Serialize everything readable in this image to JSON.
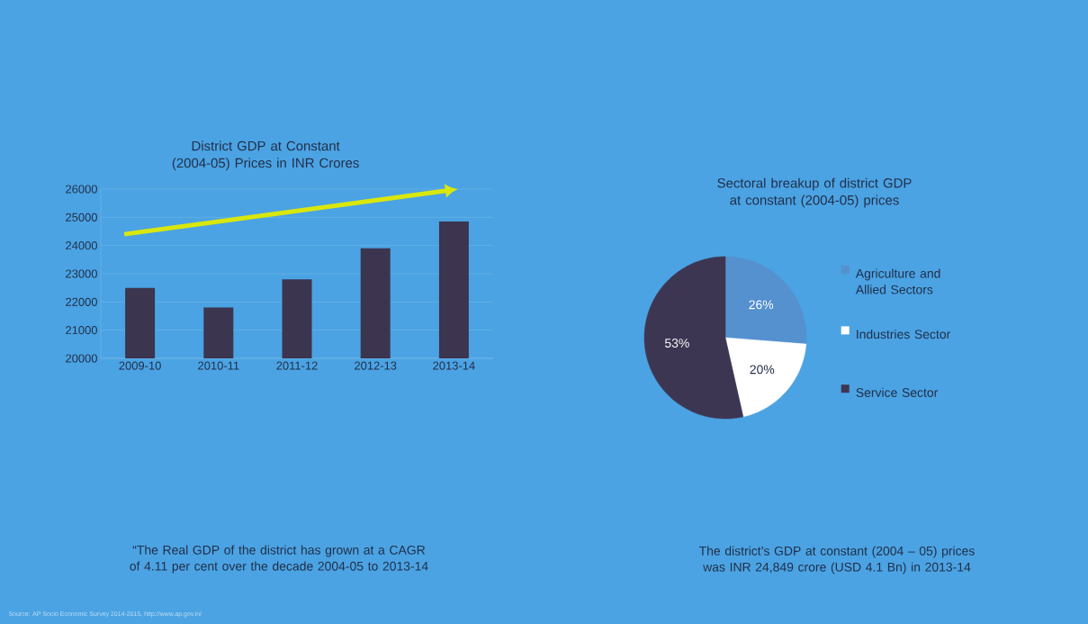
{
  "chart_data": [
    {
      "type": "bar",
      "title": "District GDP at Constant (2004-05) Prices in INR Crores",
      "categories": [
        "2009-10",
        "2010-11",
        "2011-12",
        "2012-13",
        "2013-14"
      ],
      "values": [
        22500,
        21800,
        22800,
        23900,
        24850
      ],
      "color": "#3b3550",
      "ylim": [
        20000,
        26000
      ],
      "yticks": [
        20000,
        21000,
        22000,
        23000,
        24000,
        25000,
        26000
      ],
      "grid": "y",
      "annotations": [
        "“The Real GDP of the district has grown at a CAGR of 4.11 per cent over the decade 2004-05 to 2013-14",
        "Source: AP Socio Economic Survey 2014-2015, http://www.ap.gov.in/"
      ]
    },
    {
      "type": "pie",
      "title": "Sectoral breakup of district GDP at constant (2004-05) prices",
      "categories": [
        "Agriculture and Allied Sectors",
        "Industries Sector",
        "Service Sector"
      ],
      "values": [
        26,
        20,
        53
      ],
      "value_labels": [
        "26%",
        "20%",
        "53%"
      ],
      "colors": [
        "#5590cf",
        "#ffffff",
        "#3d3652"
      ],
      "legend": "right",
      "annotations": [
        "The district’s GDP at constant (2004 – 05) prices was INR 24,849 crore (USD 4.1 Bn) in 2013-14"
      ]
    }
  ]
}
